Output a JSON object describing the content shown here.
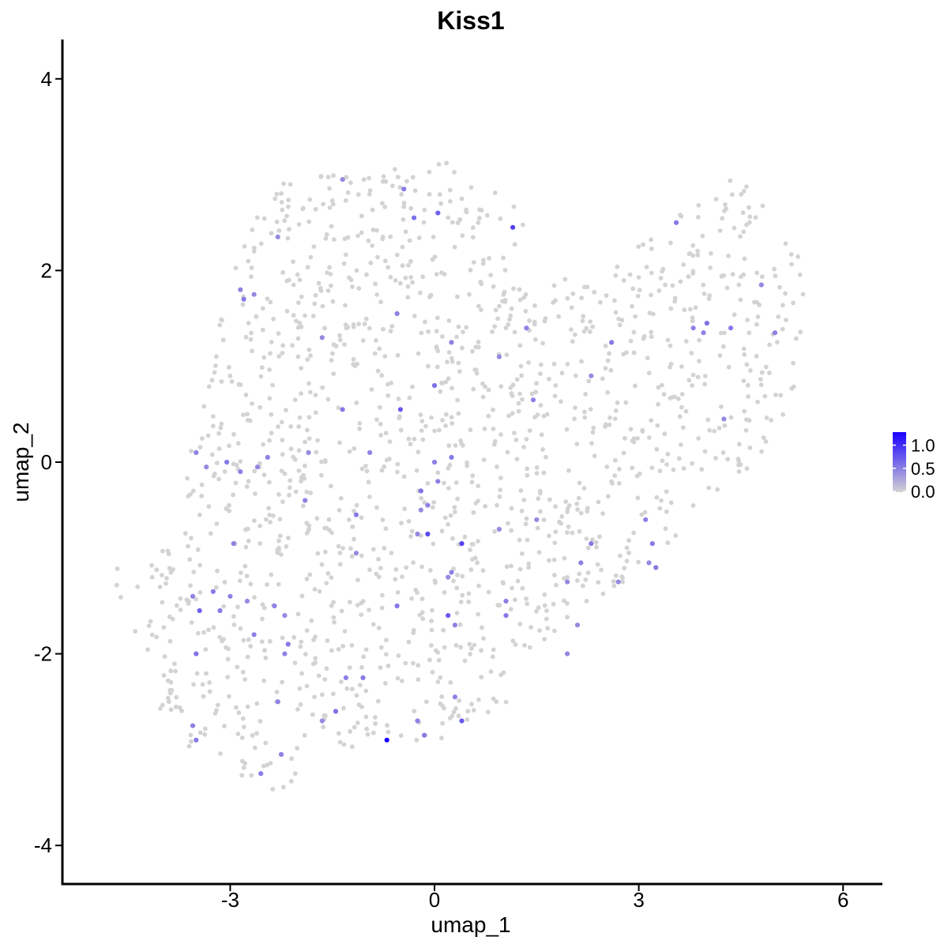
{
  "chart_data": {
    "type": "scatter",
    "title": "Kiss1",
    "xlabel": "umap_1",
    "ylabel": "umap_2",
    "xlim": [
      -5.2,
      6.6
    ],
    "ylim": [
      -4.4,
      4.4
    ],
    "x_ticks": [
      -3,
      0,
      3,
      6
    ],
    "x_tick_labels": [
      "-3",
      "0",
      "3",
      "6"
    ],
    "y_ticks": [
      -4,
      -2,
      0,
      2,
      4
    ],
    "y_tick_labels": [
      "-4",
      "-2",
      "0",
      "2",
      "4"
    ],
    "grid": false,
    "legend": {
      "placement": "right",
      "ticks": [
        1.0,
        0.5,
        0.0
      ],
      "tick_labels": [
        "1.0",
        "0.5",
        "0.0"
      ],
      "range": [
        0,
        1.3
      ],
      "low_color": "#d3d3d3",
      "high_color": "#1a00ff"
    },
    "expressing_points": [
      {
        "x": -1.35,
        "y": 2.95,
        "v": 0.45
      },
      {
        "x": -0.45,
        "y": 2.85,
        "v": 0.55
      },
      {
        "x": -0.3,
        "y": 2.55,
        "v": 0.6
      },
      {
        "x": 0.05,
        "y": 2.6,
        "v": 0.7
      },
      {
        "x": 1.15,
        "y": 2.45,
        "v": 0.9
      },
      {
        "x": -2.3,
        "y": 2.35,
        "v": 0.45
      },
      {
        "x": -2.85,
        "y": 1.8,
        "v": 0.5
      },
      {
        "x": -2.65,
        "y": 1.75,
        "v": 0.45
      },
      {
        "x": -2.8,
        "y": 1.7,
        "v": 0.55
      },
      {
        "x": -0.55,
        "y": 1.55,
        "v": 0.5
      },
      {
        "x": 1.35,
        "y": 1.4,
        "v": 0.5
      },
      {
        "x": -1.65,
        "y": 1.3,
        "v": 0.45
      },
      {
        "x": 0.25,
        "y": 1.25,
        "v": 0.5
      },
      {
        "x": 0.95,
        "y": 1.1,
        "v": 0.45
      },
      {
        "x": 2.6,
        "y": 1.25,
        "v": 0.55
      },
      {
        "x": 3.8,
        "y": 1.4,
        "v": 0.5
      },
      {
        "x": 4.0,
        "y": 1.45,
        "v": 0.6
      },
      {
        "x": 4.35,
        "y": 1.4,
        "v": 0.55
      },
      {
        "x": 3.95,
        "y": 1.35,
        "v": 0.5
      },
      {
        "x": 4.8,
        "y": 1.85,
        "v": 0.45
      },
      {
        "x": 3.55,
        "y": 2.5,
        "v": 0.55
      },
      {
        "x": 5.0,
        "y": 1.35,
        "v": 0.5
      },
      {
        "x": 2.3,
        "y": 0.9,
        "v": 0.45
      },
      {
        "x": 0.0,
        "y": 0.8,
        "v": 0.6
      },
      {
        "x": -0.5,
        "y": 0.55,
        "v": 0.75
      },
      {
        "x": 1.45,
        "y": 0.65,
        "v": 0.5
      },
      {
        "x": 4.25,
        "y": 0.45,
        "v": 0.45
      },
      {
        "x": -1.35,
        "y": 0.55,
        "v": 0.55
      },
      {
        "x": -3.5,
        "y": 0.1,
        "v": 0.5
      },
      {
        "x": -3.35,
        "y": -0.05,
        "v": 0.45
      },
      {
        "x": -3.05,
        "y": 0.0,
        "v": 0.55
      },
      {
        "x": -2.85,
        "y": -0.1,
        "v": 0.5
      },
      {
        "x": -2.6,
        "y": -0.05,
        "v": 0.45
      },
      {
        "x": -2.45,
        "y": 0.05,
        "v": 0.5
      },
      {
        "x": -1.85,
        "y": 0.1,
        "v": 0.45
      },
      {
        "x": -0.95,
        "y": 0.1,
        "v": 0.5
      },
      {
        "x": 0.0,
        "y": 0.0,
        "v": 0.5
      },
      {
        "x": 0.25,
        "y": 0.05,
        "v": 0.55
      },
      {
        "x": 0.05,
        "y": -0.2,
        "v": 0.5
      },
      {
        "x": -0.2,
        "y": -0.3,
        "v": 0.6
      },
      {
        "x": -0.1,
        "y": -0.45,
        "v": 0.5
      },
      {
        "x": -0.2,
        "y": -0.5,
        "v": 0.45
      },
      {
        "x": -1.9,
        "y": -0.4,
        "v": 0.5
      },
      {
        "x": -1.15,
        "y": -0.55,
        "v": 0.55
      },
      {
        "x": -0.25,
        "y": -0.75,
        "v": 0.45
      },
      {
        "x": -0.1,
        "y": -0.75,
        "v": 0.85
      },
      {
        "x": 0.4,
        "y": -0.85,
        "v": 0.9
      },
      {
        "x": 1.5,
        "y": -0.6,
        "v": 0.45
      },
      {
        "x": 0.95,
        "y": -0.7,
        "v": 0.45
      },
      {
        "x": -2.95,
        "y": -0.85,
        "v": 0.5
      },
      {
        "x": -1.15,
        "y": -0.95,
        "v": 0.45
      },
      {
        "x": 2.3,
        "y": -0.85,
        "v": 0.55
      },
      {
        "x": 3.1,
        "y": -0.6,
        "v": 0.5
      },
      {
        "x": 3.2,
        "y": -0.85,
        "v": 0.55
      },
      {
        "x": 3.15,
        "y": -1.05,
        "v": 0.45
      },
      {
        "x": 3.25,
        "y": -1.1,
        "v": 0.55
      },
      {
        "x": 2.15,
        "y": -1.05,
        "v": 0.5
      },
      {
        "x": 2.7,
        "y": -1.25,
        "v": 0.45
      },
      {
        "x": 0.25,
        "y": -1.15,
        "v": 0.5
      },
      {
        "x": 0.2,
        "y": -1.2,
        "v": 0.45
      },
      {
        "x": 1.05,
        "y": -1.45,
        "v": 0.5
      },
      {
        "x": 1.95,
        "y": -1.25,
        "v": 0.45
      },
      {
        "x": -3.55,
        "y": -1.4,
        "v": 0.5
      },
      {
        "x": -3.25,
        "y": -1.35,
        "v": 0.55
      },
      {
        "x": -3.0,
        "y": -1.4,
        "v": 0.5
      },
      {
        "x": -3.45,
        "y": -1.55,
        "v": 0.7
      },
      {
        "x": -3.15,
        "y": -1.55,
        "v": 0.55
      },
      {
        "x": -2.75,
        "y": -1.45,
        "v": 0.45
      },
      {
        "x": -2.35,
        "y": -1.5,
        "v": 0.5
      },
      {
        "x": -2.2,
        "y": -1.6,
        "v": 0.45
      },
      {
        "x": -0.55,
        "y": -1.5,
        "v": 0.55
      },
      {
        "x": 0.2,
        "y": -1.6,
        "v": 0.75
      },
      {
        "x": 0.3,
        "y": -1.7,
        "v": 0.5
      },
      {
        "x": 1.05,
        "y": -1.6,
        "v": 0.55
      },
      {
        "x": 2.1,
        "y": -1.7,
        "v": 0.45
      },
      {
        "x": -2.65,
        "y": -1.8,
        "v": 0.5
      },
      {
        "x": -2.15,
        "y": -1.9,
        "v": 0.55
      },
      {
        "x": -3.5,
        "y": -2.0,
        "v": 0.6
      },
      {
        "x": -2.2,
        "y": -2.0,
        "v": 0.5
      },
      {
        "x": 1.95,
        "y": -2.0,
        "v": 0.45
      },
      {
        "x": -1.3,
        "y": -2.25,
        "v": 0.5
      },
      {
        "x": -1.05,
        "y": -2.25,
        "v": 0.55
      },
      {
        "x": -2.3,
        "y": -2.5,
        "v": 0.5
      },
      {
        "x": -1.45,
        "y": -2.6,
        "v": 0.6
      },
      {
        "x": 0.3,
        "y": -2.45,
        "v": 0.5
      },
      {
        "x": -1.65,
        "y": -2.7,
        "v": 0.45
      },
      {
        "x": -3.55,
        "y": -2.75,
        "v": 0.5
      },
      {
        "x": -3.5,
        "y": -2.9,
        "v": 0.55
      },
      {
        "x": -0.25,
        "y": -2.7,
        "v": 0.5
      },
      {
        "x": 0.4,
        "y": -2.7,
        "v": 0.75
      },
      {
        "x": -0.15,
        "y": -2.85,
        "v": 0.55
      },
      {
        "x": -0.7,
        "y": -2.9,
        "v": 1.3
      },
      {
        "x": -2.25,
        "y": -3.05,
        "v": 0.5
      },
      {
        "x": -2.55,
        "y": -3.25,
        "v": 0.55
      }
    ]
  }
}
